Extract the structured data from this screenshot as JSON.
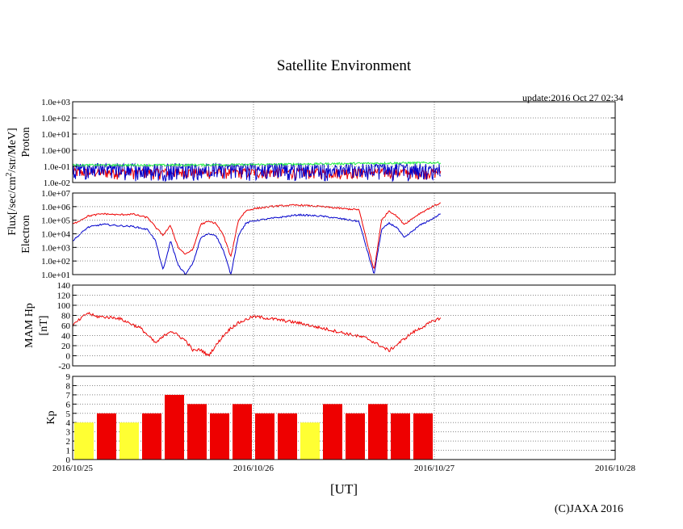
{
  "title": "Satellite Environment",
  "update_text": "update:2016 Oct 27 02:34",
  "copyright": "(C)JAXA 2016",
  "xlabel": "[UT]",
  "flux_label_prefix": "Flux[/sec/cm",
  "flux_label_sup": "2",
  "flux_label_suffix": "/str/MeV]",
  "colors": {
    "red": "#ee0000",
    "blue": "#0000cc",
    "green": "#22ee44",
    "yellow": "#ffff33",
    "grid": "#888888"
  },
  "chart_data": [
    {
      "type": "line",
      "panel": "proton",
      "ylabel": "Proton",
      "yscale": "log",
      "ylim": [
        0.01,
        1000
      ],
      "yticks": [
        "1.0e-02",
        "1.0e-01",
        "1.0e+00",
        "1.0e+01",
        "1.0e+02",
        "1.0e+03"
      ],
      "xlim": [
        "2016-10-25 00:00",
        "2016-10-28 00:00"
      ],
      "xticks": [
        "2016/10/25",
        "2016/10/26",
        "2016/10/27",
        "2016/10/28"
      ],
      "grid": true,
      "data_end": "2016-10-27 00:50",
      "series": [
        {
          "color": "green",
          "x": [
            "2016-10-25 00:00",
            "2016-10-25 12:00",
            "2016-10-26 00:00",
            "2016-10-26 12:00",
            "2016-10-27 00:50"
          ],
          "y": [
            0.12,
            0.12,
            0.13,
            0.15,
            0.17
          ]
        },
        {
          "color": "blue",
          "x": [
            "2016-10-25 00:00",
            "2016-10-25 12:00",
            "2016-10-26 00:00",
            "2016-10-26 12:00",
            "2016-10-27 00:50"
          ],
          "y": [
            0.08,
            0.08,
            0.08,
            0.08,
            0.08
          ]
        },
        {
          "color": "red",
          "x": [
            "2016-10-25 00:00",
            "2016-10-25 12:00",
            "2016-10-26 00:00",
            "2016-10-26 12:00",
            "2016-10-27 00:50"
          ],
          "y": [
            0.015,
            0.015,
            0.015,
            0.015,
            0.015
          ]
        }
      ]
    },
    {
      "type": "line",
      "panel": "electron",
      "ylabel": "Electron",
      "yscale": "log",
      "ylim": [
        10,
        10000000
      ],
      "yticks": [
        "1.0e+01",
        "1.0e+02",
        "1.0e+03",
        "1.0e+04",
        "1.0e+05",
        "1.0e+06",
        "1.0e+07"
      ],
      "grid": true,
      "series": [
        {
          "color": "red",
          "x": [
            "2016-10-25 00:00",
            "2016-10-25 02:00",
            "2016-10-25 04:00",
            "2016-10-25 06:00",
            "2016-10-25 08:00",
            "2016-10-25 10:00",
            "2016-10-25 11:00",
            "2016-10-25 12:00",
            "2016-10-25 13:00",
            "2016-10-25 14:00",
            "2016-10-25 15:00",
            "2016-10-25 16:00",
            "2016-10-25 17:00",
            "2016-10-25 18:00",
            "2016-10-25 19:00",
            "2016-10-25 20:00",
            "2016-10-25 21:00",
            "2016-10-25 22:00",
            "2016-10-25 23:00",
            "2016-10-26 00:00",
            "2016-10-26 03:00",
            "2016-10-26 06:00",
            "2016-10-26 09:00",
            "2016-10-26 12:00",
            "2016-10-26 14:00",
            "2016-10-26 16:00",
            "2016-10-26 17:00",
            "2016-10-26 18:00",
            "2016-10-26 19:00",
            "2016-10-26 20:00",
            "2016-10-26 22:00",
            "2016-10-27 00:00",
            "2016-10-27 00:50"
          ],
          "y": [
            50000,
            200000,
            300000,
            250000,
            280000,
            150000,
            30000,
            8000,
            40000,
            1000,
            300,
            800,
            50000,
            80000,
            60000,
            8000,
            200,
            100000,
            500000,
            700000,
            1100000,
            1300000,
            1000000,
            700000,
            600000,
            20,
            100000,
            500000,
            200000,
            50000,
            300000,
            1200000,
            1800000
          ]
        },
        {
          "color": "blue",
          "x": [
            "2016-10-25 00:00",
            "2016-10-25 02:00",
            "2016-10-25 04:00",
            "2016-10-25 06:00",
            "2016-10-25 08:00",
            "2016-10-25 10:00",
            "2016-10-25 11:00",
            "2016-10-25 12:00",
            "2016-10-25 13:00",
            "2016-10-25 14:00",
            "2016-10-25 15:00",
            "2016-10-25 16:00",
            "2016-10-25 17:00",
            "2016-10-25 18:00",
            "2016-10-25 19:00",
            "2016-10-25 20:00",
            "2016-10-25 21:00",
            "2016-10-25 22:00",
            "2016-10-25 23:00",
            "2016-10-26 00:00",
            "2016-10-26 03:00",
            "2016-10-26 06:00",
            "2016-10-26 09:00",
            "2016-10-26 12:00",
            "2016-10-26 14:00",
            "2016-10-26 16:00",
            "2016-10-26 17:00",
            "2016-10-26 18:00",
            "2016-10-26 19:00",
            "2016-10-26 20:00",
            "2016-10-26 22:00",
            "2016-10-27 00:00",
            "2016-10-27 00:50"
          ],
          "y": [
            3000,
            30000,
            50000,
            40000,
            35000,
            20000,
            3000,
            20,
            3000,
            50,
            10,
            80,
            5000,
            10000,
            8000,
            600,
            10,
            8000,
            60000,
            90000,
            150000,
            250000,
            200000,
            120000,
            80000,
            10,
            20000,
            60000,
            30000,
            5000,
            40000,
            150000,
            300000
          ]
        }
      ]
    },
    {
      "type": "line",
      "panel": "mam-hp",
      "ylabel": "MAM Hp",
      "ylabel2": "[nT]",
      "ylim": [
        -20,
        140
      ],
      "yticks": [
        "-20",
        "0",
        "20",
        "40",
        "60",
        "80",
        "100",
        "120",
        "140"
      ],
      "grid": true,
      "series": [
        {
          "color": "red",
          "x": [
            "2016-10-25 00:00",
            "2016-10-25 02:00",
            "2016-10-25 03:00",
            "2016-10-25 06:00",
            "2016-10-25 09:00",
            "2016-10-25 11:00",
            "2016-10-25 13:00",
            "2016-10-25 15:00",
            "2016-10-25 16:00",
            "2016-10-25 17:00",
            "2016-10-25 18:00",
            "2016-10-25 19:00",
            "2016-10-25 20:00",
            "2016-10-25 21:00",
            "2016-10-25 22:00",
            "2016-10-26 00:00",
            "2016-10-26 03:00",
            "2016-10-26 06:00",
            "2016-10-26 09:00",
            "2016-10-26 12:00",
            "2016-10-26 15:00",
            "2016-10-26 18:00",
            "2016-10-26 21:00",
            "2016-10-27 00:00",
            "2016-10-27 00:50"
          ],
          "y": [
            60,
            85,
            78,
            75,
            55,
            25,
            50,
            30,
            10,
            12,
            0,
            20,
            40,
            55,
            65,
            78,
            72,
            65,
            55,
            45,
            35,
            10,
            45,
            70,
            75
          ]
        }
      ]
    },
    {
      "type": "bar",
      "panel": "kp",
      "ylabel": "Kp",
      "ylim": [
        0,
        9
      ],
      "yticks": [
        "0",
        "1",
        "2",
        "3",
        "4",
        "5",
        "6",
        "7",
        "8",
        "9"
      ],
      "grid": true,
      "interval_hours": 3,
      "values": [
        4,
        5,
        4,
        5,
        7,
        6,
        5,
        6,
        5,
        5,
        4,
        6,
        5,
        6,
        5,
        5
      ],
      "colors": [
        "yellow",
        "red",
        "yellow",
        "red",
        "red",
        "red",
        "red",
        "red",
        "red",
        "red",
        "yellow",
        "red",
        "red",
        "red",
        "red",
        "red"
      ]
    }
  ]
}
